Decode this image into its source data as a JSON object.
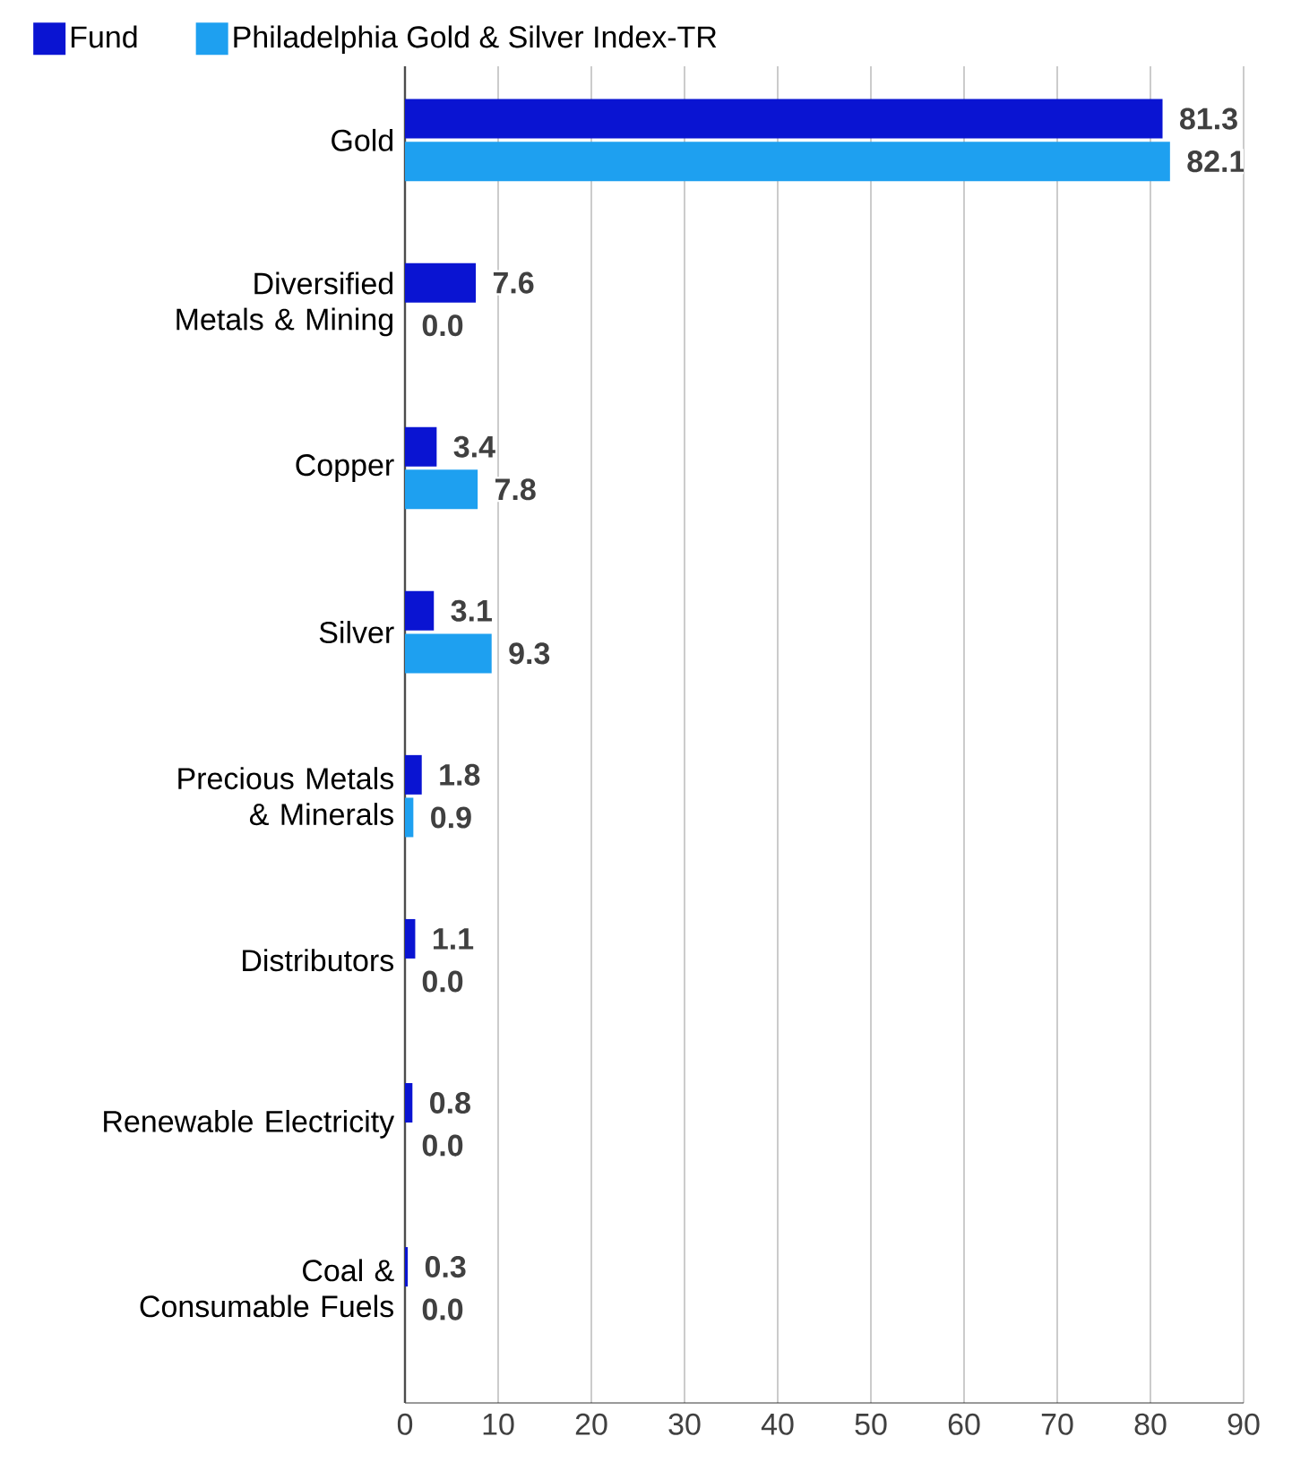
{
  "chart_data": {
    "type": "bar",
    "orientation": "horizontal",
    "categories": [
      "Gold",
      "Diversified Metals & Mining",
      "Copper",
      "Silver",
      "Precious Metals & Minerals",
      "Distributors",
      "Renewable Electricity",
      "Coal & Consumable Fuels"
    ],
    "series": [
      {
        "name": "Fund",
        "color": "#0a14d2",
        "values": [
          81.3,
          7.6,
          3.4,
          3.1,
          1.8,
          1.1,
          0.8,
          0.3
        ],
        "value_labels": [
          "81.3",
          "7.6",
          "3.4",
          "3.1",
          "1.8",
          "1.1",
          "0.8",
          "0.3"
        ]
      },
      {
        "name": "Philadelphia Gold & Silver Index-TR",
        "color": "#1ea0f0",
        "values": [
          82.1,
          0.0,
          7.8,
          9.3,
          0.9,
          0.0,
          0.0,
          0.0
        ],
        "value_labels": [
          "82.1",
          "0.0",
          "7.8",
          "9.3",
          "0.9",
          "0.0",
          "0.0",
          "0.0"
        ]
      }
    ],
    "xlim": [
      0,
      90
    ],
    "xticks": [
      0,
      10,
      20,
      30,
      40,
      50,
      60,
      70,
      80,
      90
    ],
    "grid": "x",
    "legend": "top left"
  }
}
